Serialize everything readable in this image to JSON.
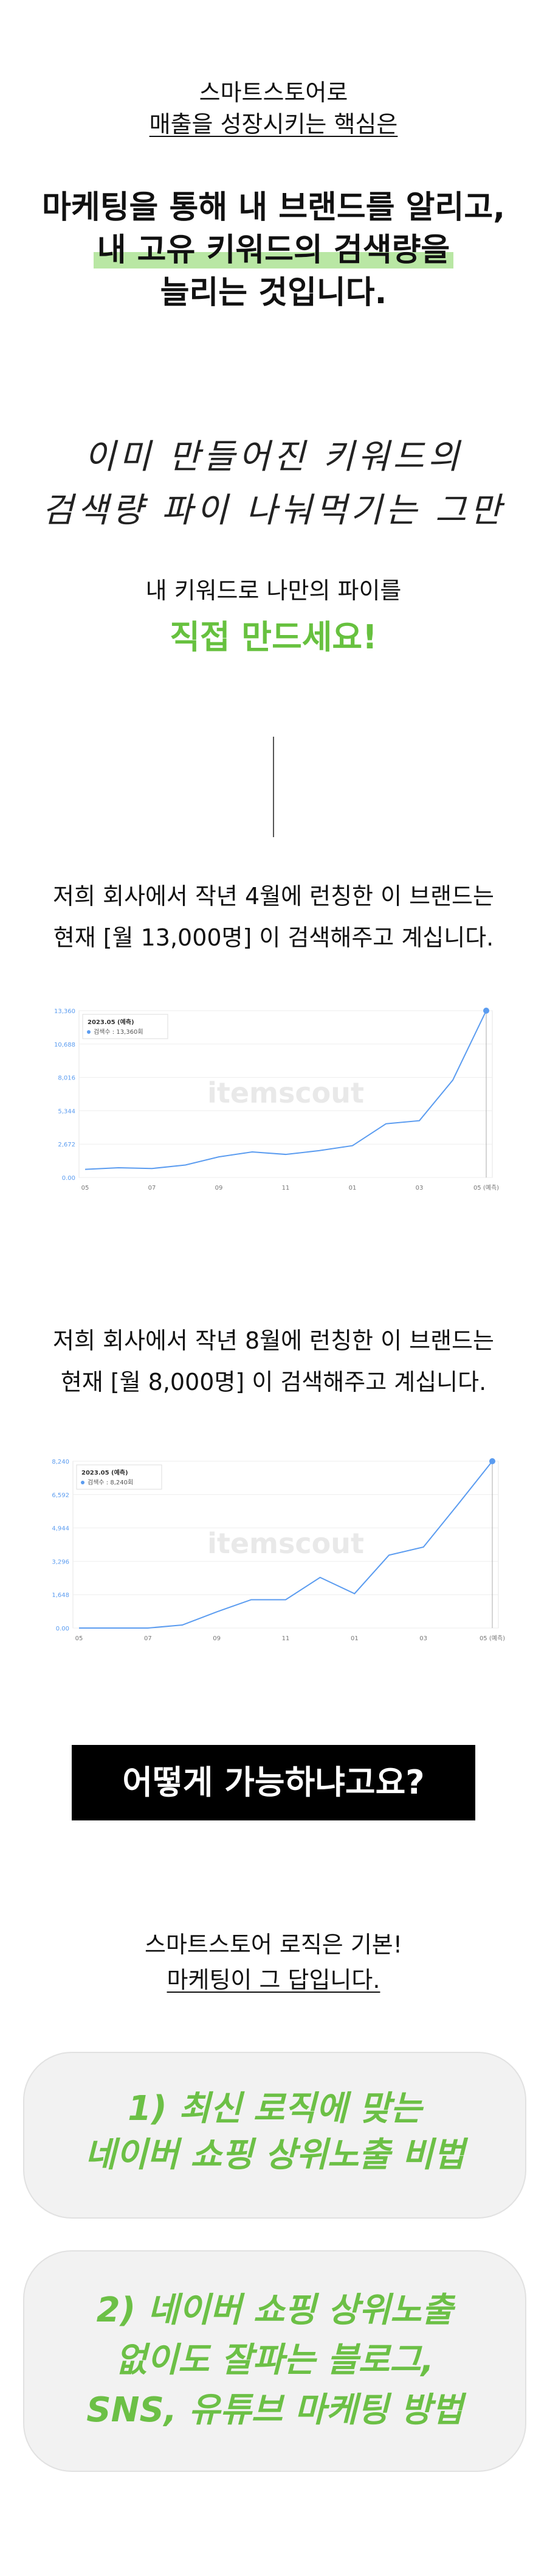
{
  "intro": {
    "line1": "스마트스토어로",
    "line2": "매출을 성장시키는 핵심은"
  },
  "headline": {
    "line1": "마케팅을 통해 내 브랜드를 알리고,",
    "line2": "내 고유 키워드의 검색량을",
    "line3": "늘리는 것입니다."
  },
  "handwriting": {
    "line1": "이미 만들어진 키워드의",
    "line2": "검색량 파이 나눠먹기는 그만"
  },
  "pie": {
    "line1": "내 키워드로 나만의 파이를",
    "line2": "직접 만드세요!"
  },
  "case1": {
    "line1": "저희 회사에서 작년 4월에 런칭한 이 브랜드는",
    "line2": "현재 [월 13,000명] 이 검색해주고 계십니다."
  },
  "case2": {
    "line1": "저희 회사에서 작년 8월에 런칭한 이 브랜드는",
    "line2": "현재 [월 8,000명] 이 검색해주고 계십니다."
  },
  "watermark": "itemscout",
  "chart_data": [
    {
      "type": "line",
      "y_ticks": [
        "0.00",
        "2,672",
        "5,344",
        "8,016",
        "10,688",
        "13,360"
      ],
      "x_ticks": [
        "05",
        "07",
        "09",
        "11",
        "01",
        "03",
        "05 (예측)"
      ],
      "ylim": [
        0,
        13360
      ],
      "tooltip_title": "2023.05 (예측)",
      "tooltip_series": "검색수 : 13,360회",
      "values": [
        650,
        780,
        720,
        1000,
        1650,
        2050,
        1850,
        2150,
        2550,
        4300,
        4550,
        7800,
        13360
      ],
      "color": "#5b9cf0"
    },
    {
      "type": "line",
      "y_ticks": [
        "0.00",
        "1,648",
        "3,296",
        "4,944",
        "6,592",
        "8,240"
      ],
      "x_ticks": [
        "05",
        "07",
        "09",
        "11",
        "01",
        "03",
        "05 (예측)"
      ],
      "ylim": [
        0,
        8240
      ],
      "tooltip_title": "2023.05 (예측)",
      "tooltip_series": "검색수 : 8,240회",
      "values": [
        0,
        0,
        0,
        150,
        800,
        1400,
        1400,
        2500,
        1700,
        3600,
        4000,
        6100,
        8240
      ],
      "color": "#5b9cf0"
    }
  ],
  "question": "어떻게 가능하냐고요?",
  "answer": {
    "line1": "스마트스토어 로직은 기본!",
    "line2": "마케팅이 그 답입니다."
  },
  "card1": {
    "line1": "1) 최신 로직에 맞는",
    "line2": "네이버 쇼핑 상위노출 비법"
  },
  "card2": {
    "line1": "2) 네이버 쇼핑 상위노출",
    "line2": "없이도 잘파는 블로그,",
    "line3": "SNS, 유튜브 마케팅 방법"
  }
}
